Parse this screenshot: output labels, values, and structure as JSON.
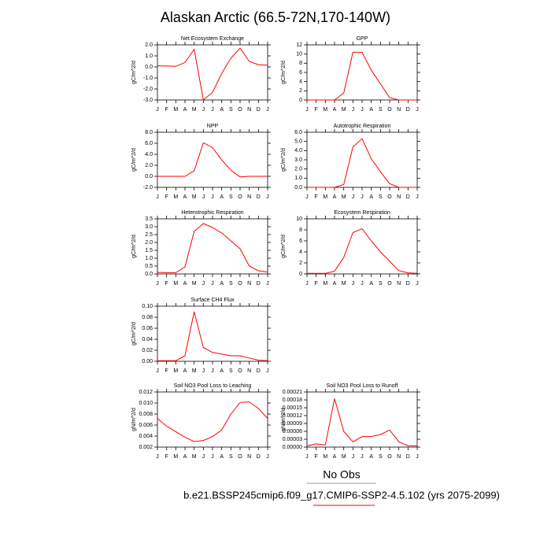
{
  "title": "Alaskan Arctic (66.5-72N,170-140W)",
  "chart_data": [
    {
      "type": "line",
      "title": "Net Ecosystem Exchange",
      "ylabel": "gC/m^2/d",
      "color": "#ff0000",
      "categories": [
        "J",
        "F",
        "M",
        "A",
        "M",
        "J",
        "J",
        "A",
        "S",
        "O",
        "N",
        "D",
        "J"
      ],
      "values": [
        0.1,
        0.08,
        0.05,
        0.4,
        1.6,
        -3.0,
        -2.3,
        -0.6,
        0.8,
        1.7,
        0.5,
        0.2,
        0.15
      ],
      "ylim": [
        -3,
        2
      ],
      "yticks": [
        {
          "value": -3,
          "label": "-3.0"
        },
        {
          "value": -2,
          "label": "-2.0"
        },
        {
          "value": -1,
          "label": "-1.0"
        },
        {
          "value": 0,
          "label": "0.0"
        },
        {
          "value": 1,
          "label": "1.0"
        },
        {
          "value": 2,
          "label": "2.0"
        }
      ]
    },
    {
      "type": "line",
      "title": "GPP",
      "ylabel": "gC/m^2/d",
      "color": "#ff0000",
      "categories": [
        "J",
        "F",
        "M",
        "A",
        "M",
        "J",
        "J",
        "A",
        "S",
        "O",
        "N",
        "D",
        "J"
      ],
      "values": [
        0,
        0,
        0,
        0,
        1.5,
        10.4,
        10.4,
        6.5,
        3.5,
        0.5,
        0,
        0,
        0
      ],
      "ylim": [
        0,
        12
      ],
      "yticks": [
        0,
        2,
        4,
        6,
        8,
        10,
        12
      ]
    },
    {
      "type": "line",
      "title": "NPP",
      "ylabel": "gC/m^2/d",
      "color": "#ff0000",
      "categories": [
        "J",
        "F",
        "M",
        "A",
        "M",
        "J",
        "J",
        "A",
        "S",
        "O",
        "N",
        "D",
        "J"
      ],
      "values": [
        0,
        0,
        0,
        0,
        1,
        6.1,
        5.2,
        3.0,
        1.1,
        -0.1,
        0,
        0,
        0
      ],
      "ylim": [
        -2,
        8
      ],
      "yticks": [
        {
          "value": -2,
          "label": "-2.0"
        },
        {
          "value": 0,
          "label": "0.0"
        },
        {
          "value": 2,
          "label": "2.0"
        },
        {
          "value": 4,
          "label": "4.0"
        },
        {
          "value": 6,
          "label": "6.0"
        },
        {
          "value": 8,
          "label": "8.0"
        }
      ]
    },
    {
      "type": "line",
      "title": "Autotrophic Respiration",
      "ylabel": "gC/m^2/d",
      "color": "#ff0000",
      "categories": [
        "J",
        "F",
        "M",
        "A",
        "M",
        "J",
        "J",
        "A",
        "S",
        "O",
        "N",
        "D",
        "J"
      ],
      "values": [
        0,
        0,
        0,
        0,
        0.3,
        4.4,
        5.3,
        3.1,
        1.7,
        0.4,
        0,
        0,
        0
      ],
      "ylim": [
        0,
        6
      ],
      "yticks": [
        {
          "value": 0,
          "label": "0.0"
        },
        {
          "value": 1,
          "label": "1.0"
        },
        {
          "value": 2,
          "label": "2.0"
        },
        {
          "value": 3,
          "label": "3.0"
        },
        {
          "value": 4,
          "label": "4.0"
        },
        {
          "value": 5,
          "label": "5.0"
        },
        {
          "value": 6,
          "label": "6.0"
        }
      ]
    },
    {
      "type": "line",
      "title": "Heterotrophic Respiration",
      "ylabel": "gC/m^2/d",
      "color": "#ff0000",
      "categories": [
        "J",
        "F",
        "M",
        "A",
        "M",
        "J",
        "J",
        "A",
        "S",
        "O",
        "N",
        "D",
        "J"
      ],
      "values": [
        0.1,
        0.08,
        0.08,
        0.45,
        2.7,
        3.2,
        2.95,
        2.6,
        2.1,
        1.6,
        0.5,
        0.2,
        0.12
      ],
      "ylim": [
        0,
        3.5
      ],
      "yticks": [
        {
          "value": 0,
          "label": "0.0"
        },
        0.5,
        {
          "value": 1,
          "label": "1.0"
        },
        1.5,
        {
          "value": 2,
          "label": "2.0"
        },
        2.5,
        {
          "value": 3,
          "label": "3.0"
        },
        3.5
      ]
    },
    {
      "type": "line",
      "title": "Ecosystem Respiration",
      "ylabel": "gC/m^2/d",
      "color": "#ff0000",
      "categories": [
        "J",
        "F",
        "M",
        "A",
        "M",
        "J",
        "J",
        "A",
        "S",
        "O",
        "N",
        "D",
        "J"
      ],
      "values": [
        0.1,
        0.1,
        0.1,
        0.5,
        3,
        7.5,
        8.2,
        6,
        4,
        2.3,
        0.6,
        0.2,
        0.1
      ],
      "ylim": [
        0,
        10
      ],
      "yticks": [
        0,
        2,
        4,
        6,
        8,
        10
      ]
    },
    {
      "type": "line",
      "title": "Surface CH4 Flux",
      "ylabel": "gC/m^2/d",
      "color": "#ff0000",
      "categories": [
        "J",
        "F",
        "M",
        "A",
        "M",
        "J",
        "J",
        "A",
        "S",
        "O",
        "N",
        "D",
        "J"
      ],
      "values": [
        0.001,
        0.001,
        0.001,
        0.01,
        0.09,
        0.025,
        0.016,
        0.013,
        0.01,
        0.01,
        0.006,
        0.002,
        0.001
      ],
      "ylim": [
        0,
        0.1
      ],
      "yticks": [
        {
          "value": 0,
          "label": "0.00"
        },
        0.02,
        0.04,
        0.06,
        0.08,
        {
          "value": 0.1,
          "label": "0.10"
        }
      ]
    },
    {
      "type": "line",
      "title": "Soil NO3 Pool Loss to Leaching",
      "ylabel": "gN/m^2/d",
      "color": "#ff0000",
      "categories": [
        "J",
        "F",
        "M",
        "A",
        "M",
        "J",
        "J",
        "A",
        "S",
        "O",
        "N",
        "D",
        "J"
      ],
      "values": [
        0.0072,
        0.0058,
        0.0048,
        0.0038,
        0.003,
        0.0032,
        0.0039,
        0.0051,
        0.008,
        0.0101,
        0.0102,
        0.009,
        0.0072
      ],
      "ylim": [
        0.002,
        0.012
      ],
      "yticks": [
        0.002,
        0.004,
        0.006,
        0.008,
        {
          "value": 0.01,
          "label": "0.010"
        },
        0.012
      ]
    },
    {
      "type": "line",
      "title": "Soil NO3 Pool Loss to Runoff",
      "ylabel": "gN/m^2/d",
      "color": "#ff0000",
      "categories": [
        "J",
        "F",
        "M",
        "A",
        "M",
        "J",
        "J",
        "A",
        "S",
        "O",
        "N",
        "D",
        "J"
      ],
      "values": [
        5e-06,
        1.2e-05,
        8e-06,
        0.000185,
        6e-05,
        2e-05,
        4e-05,
        4e-05,
        4.8e-05,
        6.5e-05,
        2e-05,
        5e-06,
        5e-06
      ],
      "ylim": [
        0,
        0.00021
      ],
      "yticks": [
        {
          "value": 0,
          "label": "0.00000"
        },
        3e-05,
        6e-05,
        9e-05,
        0.00012,
        0.00015,
        0.00018,
        0.00021
      ]
    }
  ],
  "legend": {
    "obs_label": "No Obs",
    "case_label": "b.e21.BSSP245cmip6.f09_g17.CMIP6-SSP2-4.5.102 (yrs 2075-2099)"
  }
}
